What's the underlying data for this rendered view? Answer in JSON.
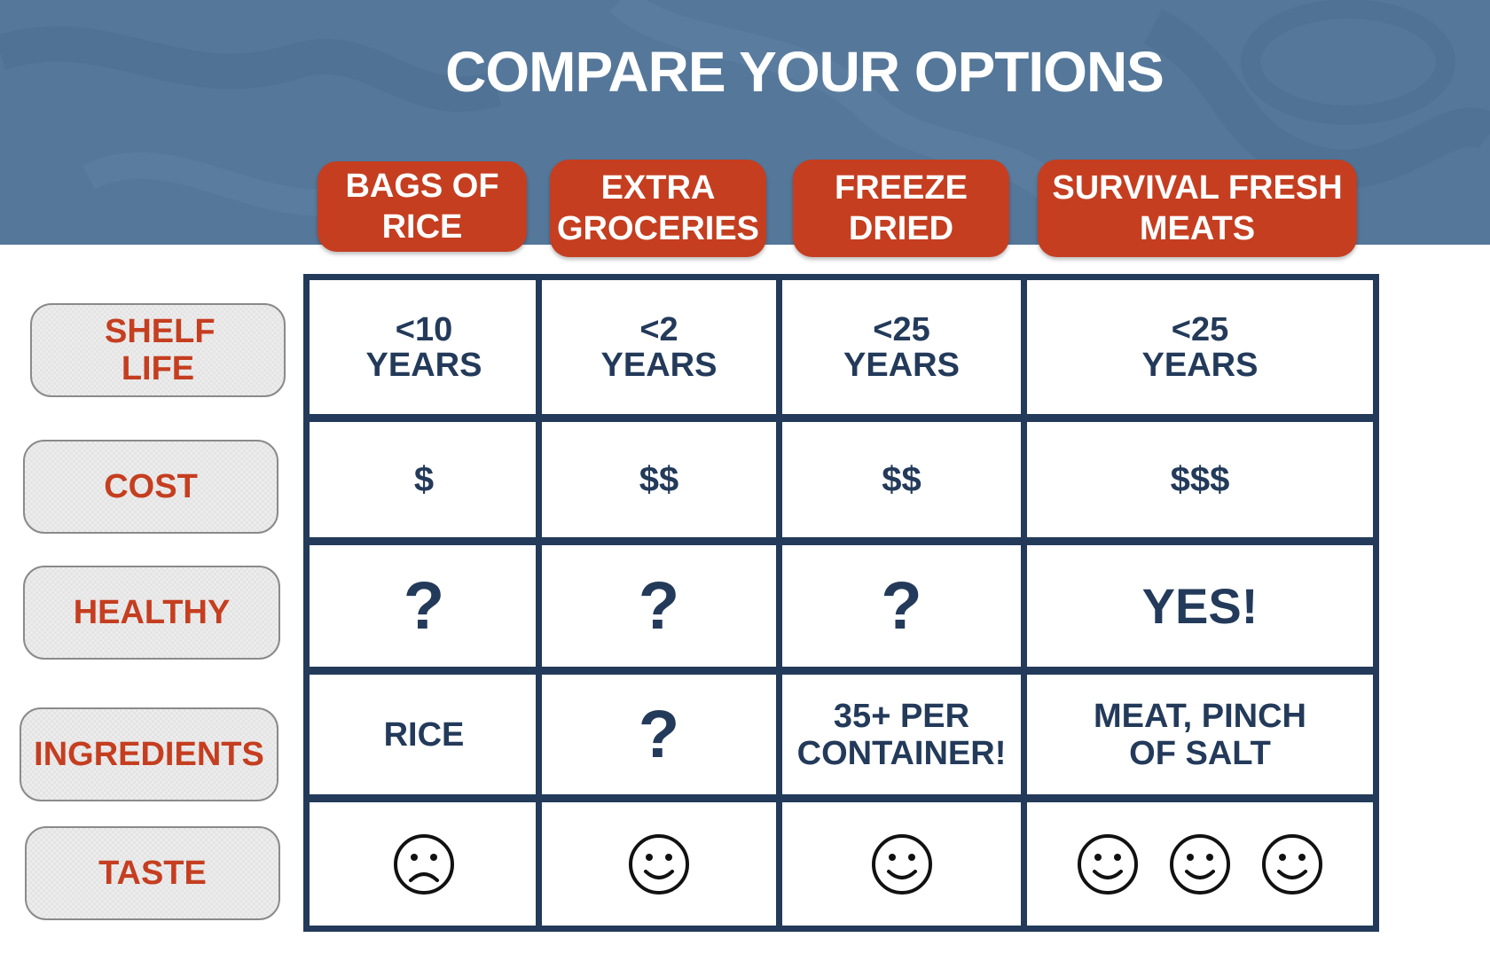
{
  "title": "COMPARE YOUR OPTIONS",
  "columns": [
    "BAGS OF RICE",
    "EXTRA GROCERIES",
    "FREEZE DRIED",
    "SURVIVAL FRESH MEATS"
  ],
  "rows": [
    {
      "label": "SHELF LIFE",
      "cells": [
        "<10 YEARS",
        "<2 YEARS",
        "<25 YEARS",
        "<25 YEARS"
      ]
    },
    {
      "label": "COST",
      "cells": [
        "$",
        "$$",
        "$$",
        "$$$"
      ]
    },
    {
      "label": "HEALTHY",
      "cells": [
        "?",
        "?",
        "?",
        "YES!"
      ]
    },
    {
      "label": "INGREDIENTS",
      "cells": [
        "RICE",
        "?",
        "35+ PER CONTAINER!",
        "MEAT, PINCH OF SALT"
      ]
    },
    {
      "label": "TASTE",
      "cells": [
        "sad-face-icon",
        "smiley-face-icon",
        "smiley-face-icon",
        "smiley-face-icon x3"
      ]
    }
  ],
  "colors": {
    "banner": "#55779a",
    "accent": "#c53e20",
    "grid": "#233a5a"
  }
}
